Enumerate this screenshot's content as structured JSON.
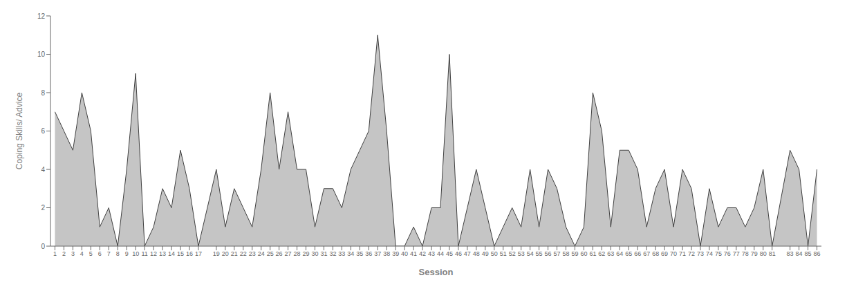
{
  "chart_data": {
    "type": "area",
    "x": [
      1,
      2,
      3,
      4,
      5,
      6,
      7,
      8,
      9,
      10,
      11,
      12,
      13,
      14,
      15,
      16,
      17,
      19,
      20,
      21,
      22,
      23,
      24,
      25,
      26,
      27,
      28,
      29,
      30,
      31,
      32,
      33,
      34,
      35,
      36,
      37,
      38,
      39,
      40,
      41,
      42,
      43,
      44,
      45,
      46,
      47,
      48,
      49,
      50,
      51,
      52,
      53,
      54,
      55,
      56,
      57,
      58,
      59,
      60,
      61,
      62,
      63,
      64,
      65,
      66,
      67,
      68,
      69,
      70,
      71,
      72,
      73,
      74,
      75,
      76,
      77,
      78,
      79,
      80,
      81,
      83,
      84,
      85,
      86
    ],
    "values": [
      7,
      6,
      5,
      8,
      6,
      1,
      2,
      0,
      4,
      9,
      0,
      1,
      3,
      2,
      5,
      3,
      0,
      4,
      1,
      3,
      2,
      1,
      4,
      8,
      4,
      7,
      4,
      4,
      1,
      3,
      3,
      2,
      4,
      5,
      6,
      11,
      6,
      0,
      0,
      1,
      0,
      2,
      2,
      10,
      0,
      2,
      4,
      2,
      0,
      1,
      2,
      1,
      4,
      1,
      4,
      3,
      1,
      0,
      1,
      8,
      6,
      1,
      5,
      5,
      4,
      1,
      3,
      4,
      1,
      4,
      3,
      0,
      3,
      1,
      2,
      2,
      1,
      2,
      4,
      0,
      5,
      4,
      0,
      4
    ],
    "xlabel": "Session",
    "ylabel": "Coping Skills/ Advice",
    "xlim": [
      0.5,
      86.5
    ],
    "xticks": [
      1,
      2,
      3,
      4,
      5,
      6,
      7,
      8,
      9,
      10,
      11,
      12,
      13,
      14,
      15,
      16,
      17,
      19,
      20,
      21,
      22,
      23,
      24,
      25,
      26,
      27,
      28,
      29,
      30,
      31,
      32,
      33,
      34,
      35,
      36,
      37,
      38,
      39,
      40,
      41,
      42,
      43,
      44,
      45,
      46,
      47,
      48,
      49,
      50,
      51,
      52,
      53,
      54,
      55,
      56,
      57,
      58,
      59,
      60,
      61,
      62,
      63,
      64,
      65,
      66,
      67,
      68,
      69,
      70,
      71,
      72,
      73,
      74,
      75,
      76,
      77,
      78,
      79,
      80,
      81,
      83,
      84,
      85,
      86
    ],
    "ylim": [
      0,
      12
    ],
    "yticks": [
      0,
      2,
      4,
      6,
      8,
      10,
      12
    ],
    "color": "#404040",
    "grid": false
  }
}
